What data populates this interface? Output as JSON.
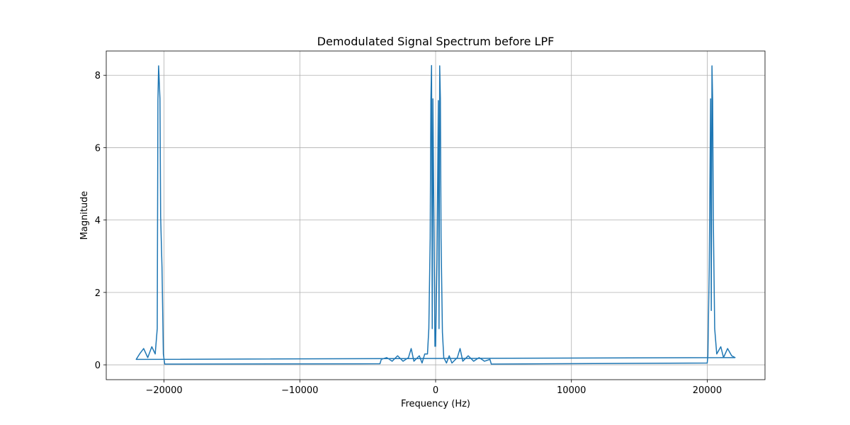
{
  "chart_data": {
    "type": "line",
    "title": "Demodulated Signal Spectrum before LPF",
    "x_label": "Frequency (Hz)",
    "y_label": "Magnitude",
    "xlim": [
      -24255,
      24255
    ],
    "ylim": [
      -0.41,
      8.67
    ],
    "xticks": [
      {
        "value": -20000,
        "label": "−20000"
      },
      {
        "value": -10000,
        "label": "−10000"
      },
      0,
      10000,
      20000
    ],
    "yticks": [
      0,
      2,
      4,
      6,
      8
    ],
    "grid": true,
    "x": [
      0,
      100,
      200,
      250,
      300,
      350,
      400,
      500,
      600,
      800,
      1000,
      1200,
      1600,
      1800,
      2000,
      2400,
      2800,
      3200,
      3600,
      4000,
      4100,
      20000,
      20050,
      20150,
      20250,
      20300,
      20350,
      20400,
      20450,
      20550,
      20700,
      21000,
      21200,
      21500,
      21800,
      22050,
      -22050,
      -21800,
      -21500,
      -21200,
      -20900,
      -20650,
      -20500,
      -20450,
      -20400,
      -20300,
      -20250,
      -20150,
      -20050,
      -19950,
      -4100,
      -4000,
      -3600,
      -3200,
      -2800,
      -2400,
      -2000,
      -1800,
      -1600,
      -1200,
      -1000,
      -800,
      -600,
      -500,
      -400,
      -350,
      -300,
      -250,
      -200,
      -100,
      -50
    ],
    "series": [
      {
        "name": "Magnitude",
        "color": "#1f77b4",
        "values": [
          0.5,
          2.9,
          7.3,
          1.0,
          8.26,
          7.35,
          3.5,
          0.9,
          0.2,
          0.05,
          0.25,
          0.05,
          0.2,
          0.45,
          0.1,
          0.25,
          0.1,
          0.2,
          0.1,
          0.15,
          0.02,
          0.05,
          0.25,
          2.7,
          7.35,
          1.5,
          8.26,
          7.3,
          4.0,
          1.0,
          0.3,
          0.5,
          0.2,
          0.45,
          0.25,
          0.2,
          0.15,
          0.3,
          0.45,
          0.2,
          0.5,
          0.3,
          1.0,
          7.3,
          8.26,
          7.35,
          4.1,
          2.7,
          0.3,
          0.02,
          0.03,
          0.15,
          0.2,
          0.1,
          0.25,
          0.1,
          0.2,
          0.45,
          0.1,
          0.25,
          0.05,
          0.3,
          0.3,
          1.0,
          3.5,
          7.3,
          8.27,
          1.0,
          7.35,
          2.9,
          0.5
        ]
      }
    ]
  }
}
